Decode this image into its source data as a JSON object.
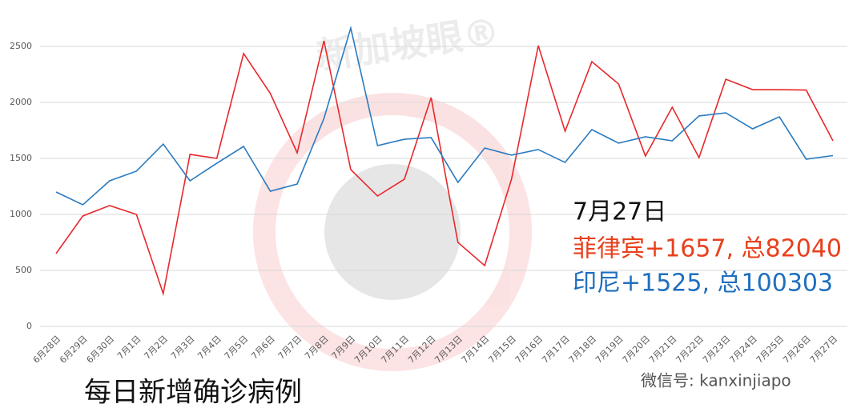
{
  "chart_data": {
    "type": "line",
    "title": "每日新增确诊病例",
    "annotations": [
      "7月27日",
      "菲律宾+1657, 总82040",
      "印尼+1525, 总100303"
    ],
    "watermark": "新加坡眼®",
    "footer": "微信号: kanxinjiapo",
    "categories": [
      "6月28日",
      "6月29日",
      "6月30日",
      "7月1日",
      "7月2日",
      "7月3日",
      "7月4日",
      "7月5日",
      "7月6日",
      "7月7日",
      "7月8日",
      "7月9日",
      "7月10日",
      "7月11日",
      "7月12日",
      "7月13日",
      "7月14日",
      "7月15日",
      "7月16日",
      "7月17日",
      "7月18日",
      "7月19日",
      "7月20日",
      "7月21日",
      "7月22日",
      "7月23日",
      "7月24日",
      "7月25日",
      "7月26日",
      "7月27日"
    ],
    "series": [
      {
        "color": "#e8282b",
        "values": [
          650,
          986,
          1079,
          1000,
          293,
          1536,
          1500,
          2436,
          2079,
          1550,
          2550,
          1400,
          1164,
          1314,
          2043,
          750,
          543,
          1314,
          2507,
          1743,
          2364,
          2164,
          1521,
          1957,
          1507,
          2207,
          2114,
          2114,
          2110,
          1657
        ]
      },
      {
        "color": "#2a7bc0",
        "values": [
          1200,
          1086,
          1300,
          1386,
          1628,
          1300,
          1457,
          1607,
          1207,
          1271,
          1857,
          2664,
          1614,
          1671,
          1686,
          1286,
          1593,
          1529,
          1579,
          1464,
          1757,
          1636,
          1693,
          1657,
          1879,
          1907,
          1764,
          1871,
          1493,
          1525
        ]
      }
    ],
    "ylim": [
      0,
      2700
    ],
    "yticks": [
      0,
      500,
      1000,
      1500,
      2000,
      2500
    ],
    "grid": true
  }
}
